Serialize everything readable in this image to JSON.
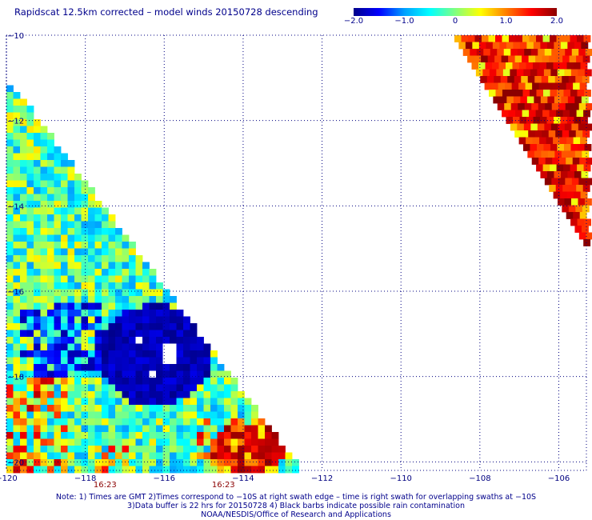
{
  "title": "Rapidscat 12.5km corrected – model winds 20150728 descending",
  "colorbar": {
    "tick_labels": [
      "−2.0",
      "−1.0",
      "0",
      "1.0",
      "2.0"
    ],
    "tick_values": [
      -2.0,
      -1.0,
      0,
      1.0,
      2.0
    ],
    "range": [
      -2.0,
      2.0
    ],
    "colors": [
      "#00008b",
      "#0000ff",
      "#00a0ff",
      "#00ffff",
      "#80ff80",
      "#ffff00",
      "#ff8000",
      "#ff0000",
      "#8b0000"
    ]
  },
  "map": {
    "lon_range": [
      -120,
      -105.3
    ],
    "lat_range": [
      -10,
      -20.2
    ],
    "lon_ticks": [
      {
        "value": -120,
        "label": "−120"
      },
      {
        "value": -118,
        "label": "−118"
      },
      {
        "value": -116,
        "label": "−116"
      },
      {
        "value": -114,
        "label": "−114"
      },
      {
        "value": -112,
        "label": "−112"
      },
      {
        "value": -110,
        "label": "−110"
      },
      {
        "value": -108,
        "label": "−108"
      },
      {
        "value": -106,
        "label": "−106"
      }
    ],
    "lat_ticks": [
      {
        "value": -10,
        "label": "−10"
      },
      {
        "value": -12,
        "label": "−12"
      },
      {
        "value": -14,
        "label": "−14"
      },
      {
        "value": -16,
        "label": "−16"
      },
      {
        "value": -18,
        "label": "−18"
      },
      {
        "value": -20,
        "label": "−20"
      }
    ],
    "grid": "dotted",
    "swath_times": [
      {
        "lon": -117.5,
        "label": "16:23"
      },
      {
        "lon": -114.5,
        "label": "16:23"
      }
    ]
  },
  "notes": [
    "Note: 1) Times are GMT 2)Times correspond to −10S at right swath edge – time is right swath for overlapping swaths at −10S",
    "3)Data buffer is 22 hrs for 20150728 4) Black barbs indicate possible rain contamination",
    "NOAA/NESDIS/Office of Research and Applications"
  ]
}
